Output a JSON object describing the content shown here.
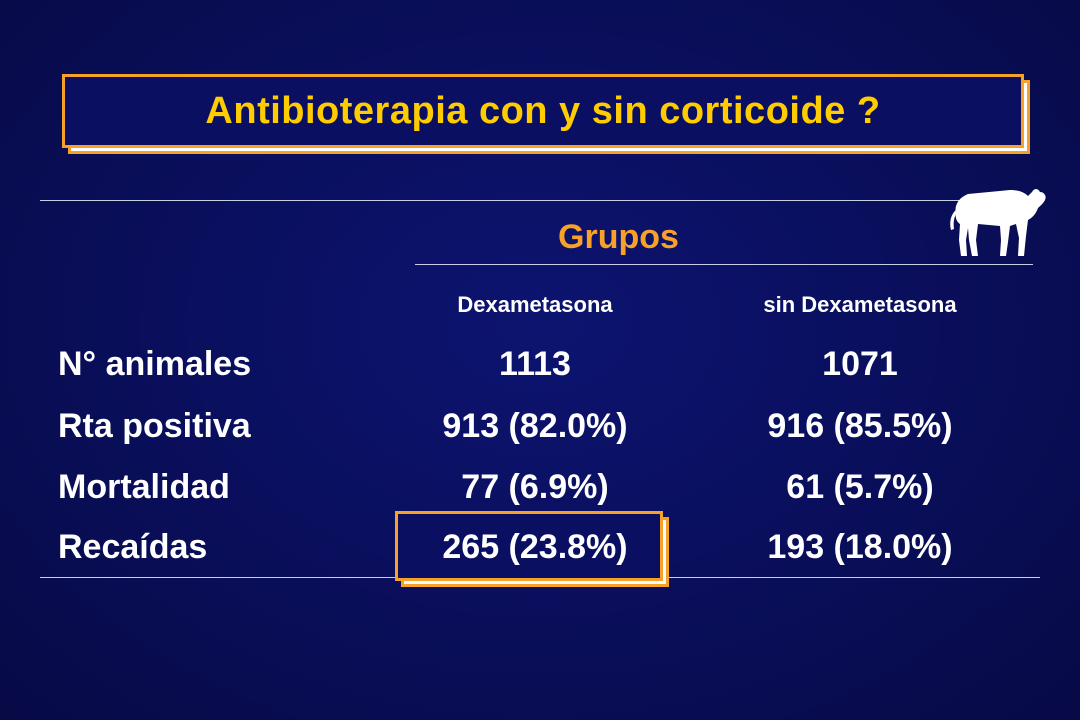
{
  "title": "Antibioterapia con y sin corticoide ?",
  "groups_label": "Grupos",
  "icon": "calf-silhouette-icon",
  "colors": {
    "title_text": "#ffcc00",
    "accent_orange": "#f7a128",
    "background": "#0a0f5e",
    "text": "#ffffff"
  },
  "table": {
    "columns": [
      "Dexametasona",
      "sin Dexametasona"
    ],
    "rows": [
      {
        "label": "N° animales",
        "values": [
          "1113",
          "1071"
        ]
      },
      {
        "label": "Rta positiva",
        "values": [
          "913 (82.0%)",
          "916 (85.5%)"
        ]
      },
      {
        "label": "Mortalidad",
        "values": [
          "77 (6.9%)",
          "61 (5.7%)"
        ]
      },
      {
        "label": "Recaídas",
        "values": [
          "265 (23.8%)",
          "193 (18.0%)"
        ],
        "highlighted_column": 0
      }
    ]
  }
}
